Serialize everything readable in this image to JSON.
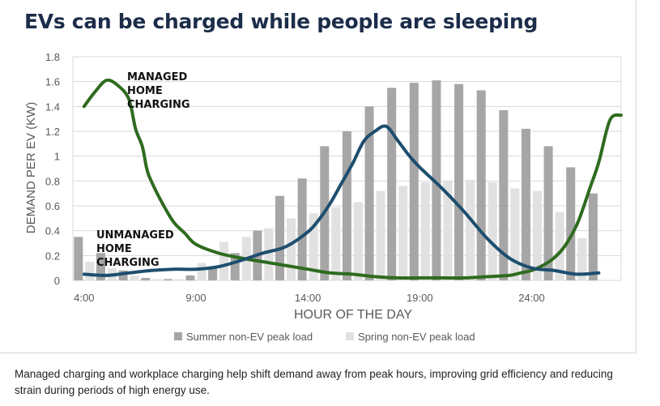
{
  "chart_data": {
    "type": "bar",
    "title": "EVs can be charged while people are sleeping",
    "xlabel": "HOUR OF THE DAY",
    "ylabel": "DEMAND PER EV (KW)",
    "ylim": [
      0,
      1.8
    ],
    "yticks": [
      "0",
      "0.2",
      "0.4",
      "0.6",
      "0.8",
      "1",
      "1.2",
      "1.4",
      "1.6",
      "1.8"
    ],
    "xticks": [
      "4:00",
      "9:00",
      "14:00",
      "19:00",
      "24:00"
    ],
    "categories": [
      "4:00",
      "5:00",
      "6:00",
      "7:00",
      "8:00",
      "9:00",
      "10:00",
      "11:00",
      "12:00",
      "13:00",
      "14:00",
      "15:00",
      "16:00",
      "17:00",
      "18:00",
      "19:00",
      "20:00",
      "21:00",
      "22:00",
      "23:00",
      "24:00",
      "25:00",
      "26:00",
      "27:00"
    ],
    "series": [
      {
        "name": "Summer non-EV peak load",
        "kind": "bar",
        "color": "#a6a6a6",
        "values": [
          0.35,
          0.22,
          0.08,
          0.02,
          0.01,
          0.04,
          0.1,
          0.22,
          0.4,
          0.68,
          0.82,
          1.08,
          1.2,
          1.4,
          1.55,
          1.59,
          1.61,
          1.58,
          1.53,
          1.37,
          1.22,
          1.08,
          0.91,
          0.7
        ]
      },
      {
        "name": "Spring non-EV peak load",
        "kind": "bar",
        "color": "#e1e1e1",
        "values": [
          0.15,
          0.1,
          0.04,
          0.01,
          0.01,
          0.14,
          0.31,
          0.35,
          0.42,
          0.5,
          0.54,
          0.59,
          0.63,
          0.72,
          0.76,
          0.79,
          0.8,
          0.81,
          0.79,
          0.74,
          0.72,
          0.55,
          0.34,
          0.0
        ]
      },
      {
        "name": "MANAGED HOME CHARGING",
        "kind": "line",
        "color": "#2e6b1f",
        "x": [
          4.0,
          4.5,
          5.0,
          5.5,
          6.0,
          6.3,
          6.6,
          6.8,
          7.0,
          7.5,
          8.0,
          8.5,
          9.0,
          10.0,
          11.0,
          12.0,
          13.0,
          14.0,
          15.0,
          16.0,
          17.0,
          18.0,
          19.0,
          20.0,
          21.0,
          22.0,
          23.0,
          23.5,
          24.0,
          24.5,
          25.0,
          25.5,
          26.0,
          26.3,
          26.6,
          27.0,
          27.5,
          28.0
        ],
        "values": [
          1.4,
          1.52,
          1.61,
          1.57,
          1.46,
          1.22,
          1.08,
          0.9,
          0.8,
          0.62,
          0.47,
          0.38,
          0.29,
          0.22,
          0.18,
          0.15,
          0.12,
          0.09,
          0.06,
          0.05,
          0.03,
          0.02,
          0.02,
          0.02,
          0.02,
          0.03,
          0.04,
          0.06,
          0.08,
          0.12,
          0.18,
          0.28,
          0.44,
          0.58,
          0.74,
          0.95,
          1.29,
          1.33
        ]
      },
      {
        "name": "UNMANAGED HOME CHARGING",
        "kind": "line",
        "color": "#1d4e6e",
        "x": [
          4.0,
          5.0,
          6.0,
          7.0,
          8.0,
          9.0,
          10.0,
          11.0,
          12.0,
          13.0,
          14.0,
          14.5,
          15.0,
          15.5,
          16.0,
          16.5,
          17.0,
          17.5,
          18.0,
          18.5,
          19.0,
          20.0,
          21.0,
          22.0,
          23.0,
          24.0,
          25.0,
          26.0,
          27.0
        ],
        "values": [
          0.05,
          0.04,
          0.06,
          0.08,
          0.09,
          0.09,
          0.11,
          0.16,
          0.22,
          0.27,
          0.39,
          0.49,
          0.62,
          0.78,
          0.94,
          1.12,
          1.2,
          1.24,
          1.13,
          1.01,
          0.91,
          0.74,
          0.55,
          0.34,
          0.18,
          0.1,
          0.08,
          0.05,
          0.06
        ]
      }
    ],
    "annotations": [
      {
        "lines": [
          "MANAGED",
          "HOME",
          "CHARGING"
        ]
      },
      {
        "lines": [
          "UNMANAGED",
          "HOME",
          "CHARGING"
        ]
      }
    ],
    "legend": {
      "summer_label": "Summer non-EV peak load",
      "spring_label": "Spring non-EV peak load",
      "placement": "bottom"
    },
    "colors": {
      "grid": "#d9d9d9",
      "axis_text": "#595959",
      "title": "#1c2d4a"
    }
  },
  "caption": "Managed charging and workplace charging help shift demand away from peak hours, improving grid efficiency and reducing strain during periods of high energy use."
}
